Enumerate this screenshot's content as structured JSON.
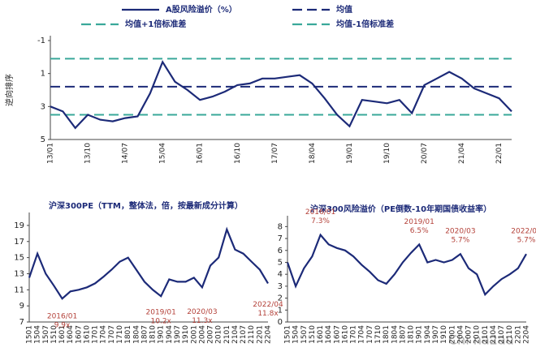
{
  "chart_data": [
    {
      "type": "line",
      "y_label": "逆向排序",
      "categories": [
        "13/01",
        null,
        null,
        "13/10",
        null,
        null,
        "14/07",
        null,
        null,
        "15/04",
        null,
        null,
        "16/01",
        null,
        null,
        "16/10",
        null,
        null,
        "17/07",
        null,
        null,
        "18/04",
        null,
        null,
        "19/01",
        null,
        null,
        "19/10",
        null,
        null,
        "20/07",
        null,
        null,
        "21/04",
        null,
        null,
        "22/01",
        null
      ],
      "series": [
        {
          "name": "A股风险溢价（%）",
          "color": "#1c2a78",
          "values": [
            3.0,
            3.3,
            4.3,
            3.5,
            3.8,
            3.9,
            3.7,
            3.6,
            2.2,
            0.3,
            1.5,
            2.0,
            2.6,
            2.4,
            2.1,
            1.7,
            1.6,
            1.3,
            1.3,
            1.2,
            1.1,
            1.6,
            2.5,
            3.5,
            4.2,
            2.6,
            2.7,
            2.8,
            2.6,
            3.4,
            1.7,
            1.3,
            0.9,
            1.3,
            1.9,
            2.2,
            2.5,
            3.3
          ]
        }
      ],
      "reference_lines": [
        {
          "name": "均值",
          "color": "#1c2a78",
          "value": 1.8,
          "style": "dashed"
        },
        {
          "name": "均值+1倍标准差",
          "color": "#3aa89a",
          "value": 0.1,
          "style": "dashed"
        },
        {
          "name": "均值-1倍标准差",
          "color": "#3aa89a",
          "value": 3.5,
          "style": "dashed"
        }
      ],
      "ylim": [
        -1,
        5
      ],
      "yticks": [
        -1,
        1,
        3,
        5
      ],
      "y_reversed": true
    },
    {
      "type": "line",
      "title": "沪深300PE（TTM，整体法，倍，按最新成分计算）",
      "categories": [
        "1501",
        "1504",
        "1507",
        "1510",
        "1601",
        "1604",
        "1607",
        "1610",
        "1701",
        "1704",
        "1707",
        "1710",
        "1801",
        "1804",
        "1807",
        "1810",
        "1901",
        "1904",
        "1907",
        "1910",
        "2001",
        "2004",
        "2007",
        "2010",
        "2101",
        "2104",
        "2107",
        "2110",
        "2201",
        "2204"
      ],
      "series": [
        {
          "color": "#1c2a78",
          "values": [
            12.5,
            15.5,
            13,
            11.5,
            9.9,
            10.8,
            11,
            11.3,
            11.8,
            12.6,
            13.5,
            14.5,
            15,
            13.5,
            12,
            11,
            10.2,
            12.3,
            12,
            12,
            12.5,
            11.3,
            14,
            15,
            18.5,
            16,
            15.5,
            14.5,
            13.5,
            11.8
          ]
        }
      ],
      "annotations": [
        {
          "date": "2016/01",
          "label": "9.9x"
        },
        {
          "date": "2019/01",
          "label": "10.2x"
        },
        {
          "date": "2020/03",
          "label": "11.3x"
        },
        {
          "date": "2022/04",
          "label": "11.8x"
        }
      ],
      "ylim": [
        7,
        20
      ],
      "yticks": [
        7,
        9,
        11,
        13,
        15,
        17,
        19
      ]
    },
    {
      "type": "line",
      "title": "沪深300风险溢价（PE倒数-10年期国债收益率）",
      "categories": [
        "1501",
        "1504",
        "1507",
        "1510",
        "1601",
        "1604",
        "1607",
        "1610",
        "1701",
        "1704",
        "1707",
        "1710",
        "1801",
        "1804",
        "1807",
        "1810",
        "1901",
        "1904",
        "1907",
        "1910",
        "2001",
        "2004",
        "2007",
        "2010",
        "2101",
        "2104",
        "2107",
        "2110",
        "2201",
        "2204"
      ],
      "series": [
        {
          "color": "#1c2a78",
          "values": [
            5.0,
            3.0,
            4.5,
            5.5,
            7.3,
            6.5,
            6.2,
            6.0,
            5.5,
            4.8,
            4.2,
            3.5,
            3.2,
            4.0,
            5.0,
            5.8,
            6.5,
            5.0,
            5.2,
            5.0,
            5.2,
            5.7,
            4.5,
            4.0,
            2.3,
            3.0,
            3.6,
            4.0,
            4.5,
            5.7
          ]
        }
      ],
      "annotations": [
        {
          "date": "2016/01",
          "label": "7.3%"
        },
        {
          "date": "2019/01",
          "label": "6.5%"
        },
        {
          "date": "2020/03",
          "label": "5.7%"
        },
        {
          "date": "2022/04",
          "label": "5.7%"
        }
      ],
      "ylim": [
        0,
        8.5
      ],
      "yticks": [
        0,
        1,
        2,
        3,
        4,
        5,
        6,
        7,
        8
      ]
    }
  ],
  "watermark": "Chi na2au"
}
